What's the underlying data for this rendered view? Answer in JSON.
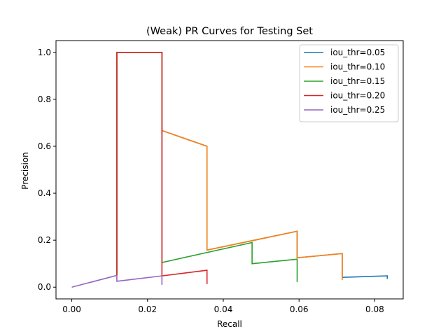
{
  "chart_data": {
    "type": "line",
    "title": "(Weak) PR Curves for Testing Set",
    "xlabel": "Recall",
    "ylabel": "Precision",
    "xlim": [
      -0.00417,
      0.0875
    ],
    "ylim": [
      -0.05,
      1.05
    ],
    "xticks": [
      0.0,
      0.02,
      0.04,
      0.06,
      0.08
    ],
    "xtick_labels": [
      "0.00",
      "0.02",
      "0.04",
      "0.06",
      "0.08"
    ],
    "yticks": [
      0.0,
      0.2,
      0.4,
      0.6,
      0.8,
      1.0
    ],
    "ytick_labels": [
      "0.0",
      "0.2",
      "0.4",
      "0.6",
      "0.8",
      "1.0"
    ],
    "grid": false,
    "legend_position": "top-right",
    "series": [
      {
        "name": "iou_thr=0.05",
        "color": "#1f77b4",
        "x": [
          0.0119,
          0.0119,
          0.0238,
          0.0238,
          0.0357,
          0.0357,
          0.0595,
          0.0595,
          0.0714,
          0.0714,
          0.0833,
          0.0833
        ],
        "y": [
          0.05,
          1.0,
          1.0,
          0.667,
          0.6,
          0.158,
          0.238,
          0.125,
          0.143,
          0.042,
          0.048,
          0.035
        ]
      },
      {
        "name": "iou_thr=0.10",
        "color": "#ff7f0e",
        "x": [
          0.0119,
          0.0119,
          0.0238,
          0.0238,
          0.0357,
          0.0357,
          0.0595,
          0.0595,
          0.0714,
          0.0714
        ],
        "y": [
          0.05,
          1.0,
          1.0,
          0.667,
          0.6,
          0.158,
          0.238,
          0.125,
          0.143,
          0.03
        ]
      },
      {
        "name": "iou_thr=0.15",
        "color": "#2ca02c",
        "x": [
          0.0119,
          0.0119,
          0.0238,
          0.0238,
          0.0476,
          0.0476,
          0.0595,
          0.0595
        ],
        "y": [
          0.05,
          1.0,
          1.0,
          0.105,
          0.19,
          0.1,
          0.119,
          0.022
        ]
      },
      {
        "name": "iou_thr=0.20",
        "color": "#d62728",
        "x": [
          0.0119,
          0.0119,
          0.0238,
          0.0238,
          0.0357,
          0.0357
        ],
        "y": [
          0.05,
          1.0,
          1.0,
          0.048,
          0.072,
          0.013
        ]
      },
      {
        "name": "iou_thr=0.25",
        "color": "#9467bd",
        "x": [
          0.0,
          0.0119,
          0.0119,
          0.0238,
          0.0238
        ],
        "y": [
          0.0,
          0.05,
          0.025,
          0.048,
          0.01
        ]
      }
    ]
  }
}
